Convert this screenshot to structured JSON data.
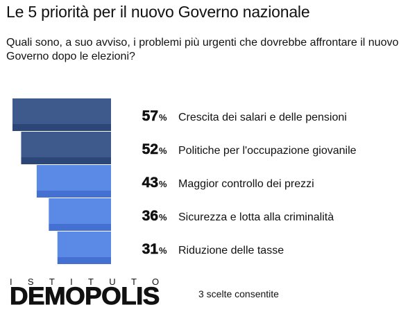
{
  "header": {
    "title": "Le 5 priorità per il nuovo Governo nazionale",
    "subtitle": "Quali sono, a suo avviso, i problemi più urgenti che dovrebbe affrontare il nuovo Governo dopo le elezioni?"
  },
  "chart_data": {
    "type": "bar",
    "categories": [
      "Crescita dei salari e delle pensioni",
      "Politiche per l'occupazione giovanile",
      "Maggior controllo dei prezzi",
      "Sicurezza e lotta alla criminalità",
      "Riduzione delle tasse"
    ],
    "values": [
      57,
      52,
      43,
      36,
      31
    ],
    "value_labels": [
      "57",
      "52",
      "43",
      "36",
      "31"
    ],
    "unit": "%",
    "colors": {
      "dark": "#3e5a8c",
      "dark_shadow": "#2b4677",
      "light": "#5b8ae6",
      "light_shadow": "#4470d1"
    }
  },
  "footer": {
    "logo_top": "ISTITUTO",
    "logo_main": "DEMOPOLIS",
    "note": "3 scelte consentite"
  }
}
